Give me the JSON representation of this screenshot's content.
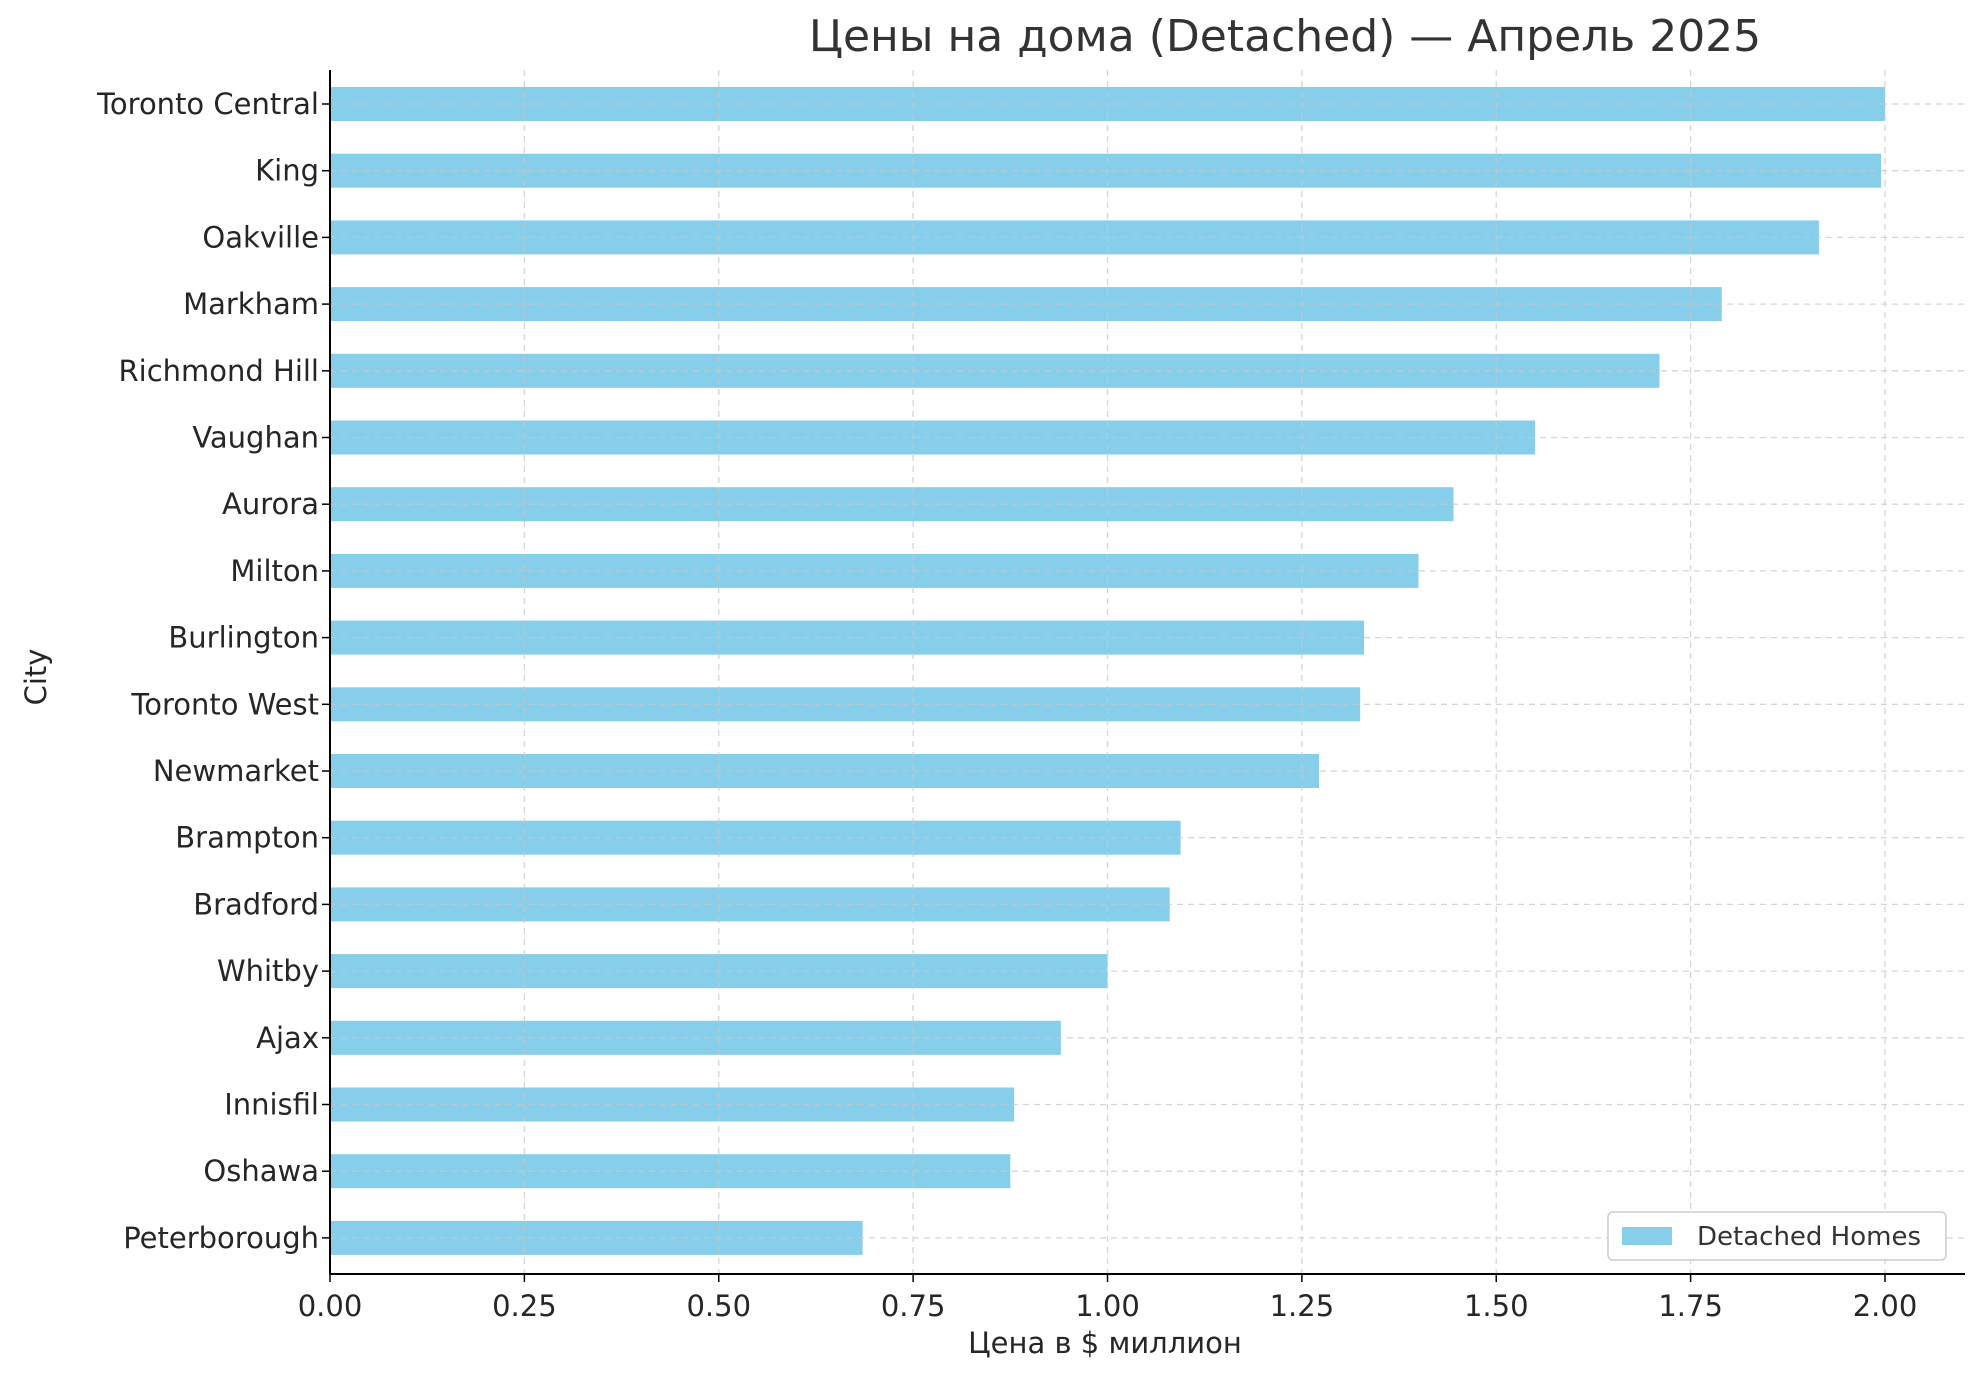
{
  "chart_data": {
    "type": "bar",
    "orientation": "horizontal",
    "title": "Цены на дома (Detached) — Апрель 2025",
    "xlabel": "Цена в $ миллион",
    "ylabel": "City",
    "xlim": [
      0,
      2.1
    ],
    "xticks": [
      "0.00",
      "0.25",
      "0.50",
      "0.75",
      "1.00",
      "1.25",
      "1.50",
      "1.75",
      "2.00"
    ],
    "categories": [
      "Toronto Central",
      "King",
      "Oakville",
      "Markham",
      "Richmond Hill",
      "Vaughan",
      "Aurora",
      "Milton",
      "Burlington",
      "Toronto West",
      "Newmarket",
      "Brampton",
      "Bradford",
      "Whitby",
      "Ajax",
      "Innisfil",
      "Oshawa",
      "Peterborough"
    ],
    "series": [
      {
        "name": "Detached Homes",
        "color": "#87CEEB",
        "values": [
          2.0,
          1.995,
          1.915,
          1.79,
          1.71,
          1.55,
          1.445,
          1.4,
          1.33,
          1.325,
          1.272,
          1.094,
          1.08,
          1.0,
          0.94,
          0.88,
          0.875,
          0.685
        ]
      }
    ],
    "grid": true,
    "legend_position": "lower-right"
  }
}
